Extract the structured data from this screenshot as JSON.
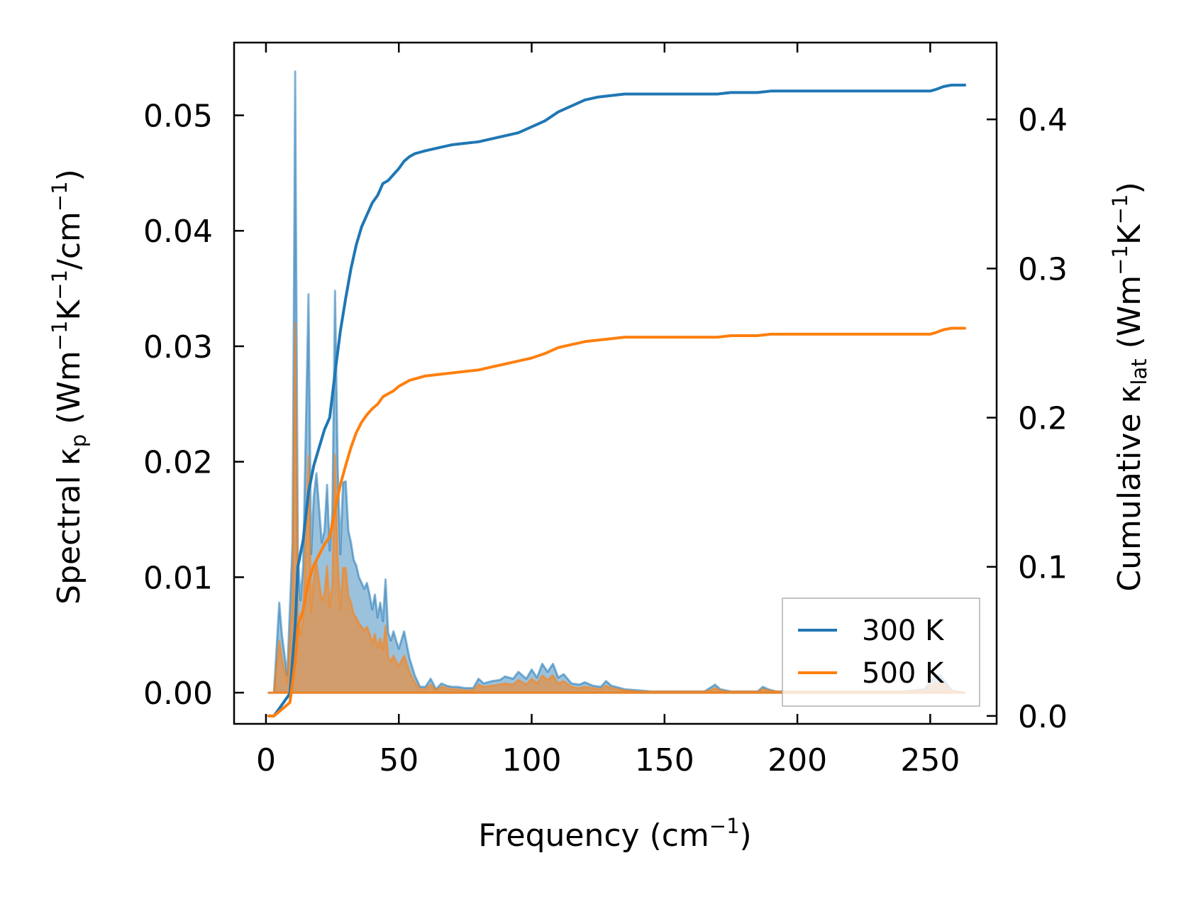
{
  "chart_data": {
    "type": "line",
    "title": "",
    "xlabel": "Frequency (cm⁻¹)",
    "xlabel_parts": {
      "main": "Frequency (cm",
      "sup": "−1",
      "tail": ")"
    },
    "ylabel": "Spectral κp (Wm⁻¹K⁻¹/cm⁻¹)",
    "ylabel_parts": {
      "a": "Spectral κ",
      "sub": "p",
      "b": " (Wm",
      "sup1": "−1",
      "c": "K",
      "sup2": "−1",
      "d": "/cm",
      "sup3": "−1",
      "e": ")"
    },
    "y2label": "Cumulative κlat (Wm⁻¹K⁻¹)",
    "y2label_parts": {
      "a": "Cumulative κ",
      "sub": "lat",
      "b": " (Wm",
      "sup1": "−1",
      "c": "K",
      "sup2": "−1",
      "d": ")"
    },
    "xlim": [
      -12,
      275
    ],
    "ylim": [
      -0.0027,
      0.0563
    ],
    "y2lim": [
      -0.0053,
      0.4515
    ],
    "xticks": [
      0,
      50,
      100,
      150,
      200,
      250
    ],
    "xtick_labels": [
      "0",
      "50",
      "100",
      "150",
      "200",
      "250"
    ],
    "yticks": [
      0.0,
      0.01,
      0.02,
      0.03,
      0.04,
      0.05
    ],
    "ytick_labels": [
      "0.00",
      "0.01",
      "0.02",
      "0.03",
      "0.04",
      "0.05"
    ],
    "y2ticks": [
      0.0,
      0.1,
      0.2,
      0.3,
      0.4
    ],
    "y2tick_labels": [
      "0.0",
      "0.1",
      "0.2",
      "0.3",
      "0.4"
    ],
    "legend_position": "lower-right",
    "colors": {
      "s300": "#1f77b4",
      "s500": "#ff7f0e"
    },
    "series": [
      {
        "name": "300 K",
        "color": "#1f77b4",
        "spectral": {
          "x": [
            1,
            3,
            5,
            6,
            8,
            10,
            11,
            12,
            13,
            14,
            16,
            17,
            18,
            19,
            21,
            22,
            23,
            24,
            25,
            26,
            27,
            28,
            29,
            30,
            31,
            32,
            33,
            34,
            35,
            36,
            37,
            38,
            39,
            40,
            41,
            42,
            43,
            44,
            45,
            46,
            47,
            48,
            49,
            50,
            52,
            54,
            56,
            58,
            60,
            62,
            64,
            66,
            68,
            70,
            72,
            75,
            78,
            80,
            82,
            85,
            88,
            90,
            93,
            95,
            98,
            100,
            102,
            104,
            106,
            108,
            110,
            112,
            115,
            118,
            120,
            123,
            126,
            128,
            130,
            135,
            140,
            145,
            150,
            160,
            165,
            167,
            169,
            171,
            173,
            175,
            180,
            185,
            187,
            189,
            192,
            200,
            220,
            240,
            248,
            250,
            252,
            254,
            256,
            258,
            260,
            263
          ],
          "y": [
            0,
            0,
            0.0078,
            0.005,
            0.0015,
            0.013,
            0.0538,
            0.012,
            0.008,
            0.011,
            0.0345,
            0.012,
            0.017,
            0.019,
            0.013,
            0.014,
            0.018,
            0.0123,
            0.0158,
            0.0348,
            0.0195,
            0.012,
            0.0182,
            0.0183,
            0.014,
            0.013,
            0.0115,
            0.011,
            0.01,
            0.0095,
            0.009,
            0.0095,
            0.0085,
            0.0072,
            0.0085,
            0.0065,
            0.0078,
            0.0062,
            0.0098,
            0.0052,
            0.0045,
            0.0053,
            0.0045,
            0.0038,
            0.0053,
            0.003,
            0.0015,
            0.0005,
            0.0005,
            0.0012,
            0.0003,
            0.0008,
            0.0006,
            0.0005,
            0.0005,
            0.0004,
            0.0004,
            0.0012,
            0.0008,
            0.001,
            0.0011,
            0.0014,
            0.0012,
            0.0018,
            0.0012,
            0.002,
            0.0013,
            0.0025,
            0.0018,
            0.0025,
            0.0013,
            0.0016,
            0.0008,
            0.0007,
            0.0009,
            0.0006,
            0.0005,
            0.001,
            0.0006,
            0.0003,
            0.0002,
            0.0001,
            0.0001,
            0.0001,
            0.0001,
            0.0004,
            0.0007,
            0.0003,
            0.0002,
            0.0001,
            0.0001,
            0.0001,
            0.0005,
            0.0003,
            0.0001,
            0.0001,
            0.0001,
            0.0001,
            0.0003,
            0.001,
            0.0014,
            0.0015,
            0.0008,
            0.0002,
            0.0001,
            0
          ]
        },
        "cumulative": {
          "x": [
            1,
            3,
            5,
            7,
            9,
            11,
            12,
            14,
            16,
            18,
            20,
            22,
            24,
            26,
            28,
            30,
            32,
            34,
            36,
            38,
            40,
            42,
            44,
            46,
            48,
            50,
            52,
            54,
            56,
            58,
            60,
            65,
            70,
            75,
            80,
            85,
            90,
            95,
            100,
            105,
            110,
            115,
            120,
            125,
            130,
            135,
            140,
            150,
            160,
            170,
            175,
            185,
            190,
            200,
            220,
            240,
            250,
            252,
            255,
            258,
            263
          ],
          "y": [
            0,
            0,
            0.005,
            0.01,
            0.015,
            0.06,
            0.1,
            0.118,
            0.15,
            0.168,
            0.18,
            0.192,
            0.2,
            0.23,
            0.258,
            0.28,
            0.3,
            0.316,
            0.328,
            0.336,
            0.344,
            0.349,
            0.357,
            0.359,
            0.363,
            0.367,
            0.372,
            0.375,
            0.377,
            0.378,
            0.379,
            0.381,
            0.383,
            0.384,
            0.385,
            0.387,
            0.389,
            0.391,
            0.395,
            0.399,
            0.405,
            0.409,
            0.413,
            0.415,
            0.416,
            0.417,
            0.417,
            0.417,
            0.417,
            0.417,
            0.418,
            0.418,
            0.419,
            0.419,
            0.419,
            0.419,
            0.419,
            0.42,
            0.422,
            0.423,
            0.423
          ]
        }
      },
      {
        "name": "500 K",
        "color": "#ff7f0e",
        "spectral": {
          "x": [
            1,
            3,
            5,
            6,
            8,
            10,
            11,
            12,
            13,
            14,
            16,
            17,
            18,
            19,
            21,
            22,
            23,
            24,
            25,
            26,
            27,
            28,
            29,
            30,
            31,
            32,
            33,
            34,
            35,
            36,
            37,
            38,
            39,
            40,
            41,
            42,
            43,
            44,
            45,
            46,
            47,
            48,
            49,
            50,
            52,
            54,
            56,
            58,
            60,
            62,
            64,
            66,
            68,
            70,
            72,
            75,
            78,
            80,
            82,
            85,
            88,
            90,
            93,
            95,
            98,
            100,
            102,
            104,
            106,
            108,
            110,
            112,
            115,
            118,
            120,
            123,
            126,
            128,
            130,
            135,
            140,
            145,
            150,
            160,
            165,
            167,
            169,
            171,
            173,
            175,
            180,
            185,
            187,
            189,
            192,
            200,
            220,
            240,
            248,
            250,
            252,
            254,
            256,
            258,
            260,
            263
          ],
          "y": [
            0,
            0,
            0.0045,
            0.003,
            0.0009,
            0.008,
            0.032,
            0.007,
            0.005,
            0.0065,
            0.0205,
            0.007,
            0.01,
            0.0112,
            0.008,
            0.0085,
            0.011,
            0.0074,
            0.0095,
            0.0206,
            0.0115,
            0.0072,
            0.0108,
            0.0108,
            0.0084,
            0.0078,
            0.0068,
            0.0065,
            0.006,
            0.0057,
            0.0054,
            0.0057,
            0.0051,
            0.0043,
            0.0051,
            0.0039,
            0.0047,
            0.0037,
            0.0058,
            0.0031,
            0.0027,
            0.0032,
            0.0027,
            0.0023,
            0.0032,
            0.0018,
            0.0009,
            0.0003,
            0.0003,
            0.0007,
            0.0002,
            0.0005,
            0.0004,
            0.0003,
            0.0003,
            0.0002,
            0.0002,
            0.0007,
            0.0005,
            0.0006,
            0.0007,
            0.0008,
            0.0007,
            0.0011,
            0.0007,
            0.0012,
            0.0008,
            0.0015,
            0.0011,
            0.0015,
            0.0008,
            0.001,
            0.0005,
            0.0004,
            0.0005,
            0.0004,
            0.0003,
            0.0006,
            0.0004,
            0.0002,
            0.0001,
            0.0001,
            0.0001,
            0.0001,
            0.0001,
            0.0002,
            0.0004,
            0.0002,
            0.0001,
            0.0001,
            0.0001,
            0.0001,
            0.0003,
            0.0002,
            0.0001,
            0.0001,
            0.0001,
            0.0001,
            0.0002,
            0.0006,
            0.0008,
            0.0009,
            0.0005,
            0.0001,
            0.0001,
            0
          ]
        },
        "cumulative": {
          "x": [
            1,
            3,
            5,
            7,
            9,
            11,
            12,
            14,
            16,
            18,
            20,
            22,
            24,
            26,
            28,
            30,
            32,
            34,
            36,
            38,
            40,
            42,
            44,
            46,
            48,
            50,
            52,
            54,
            56,
            58,
            60,
            65,
            70,
            75,
            80,
            85,
            90,
            95,
            100,
            105,
            110,
            115,
            120,
            125,
            130,
            135,
            140,
            150,
            160,
            170,
            175,
            185,
            190,
            200,
            220,
            240,
            250,
            252,
            255,
            258,
            263
          ],
          "y": [
            0,
            0,
            0.003,
            0.006,
            0.009,
            0.036,
            0.06,
            0.071,
            0.09,
            0.101,
            0.108,
            0.115,
            0.12,
            0.138,
            0.155,
            0.168,
            0.18,
            0.19,
            0.197,
            0.202,
            0.206,
            0.209,
            0.214,
            0.216,
            0.218,
            0.221,
            0.223,
            0.225,
            0.226,
            0.227,
            0.228,
            0.229,
            0.23,
            0.231,
            0.232,
            0.234,
            0.236,
            0.238,
            0.24,
            0.243,
            0.247,
            0.249,
            0.251,
            0.252,
            0.253,
            0.254,
            0.254,
            0.254,
            0.254,
            0.254,
            0.255,
            0.255,
            0.256,
            0.256,
            0.256,
            0.256,
            0.256,
            0.257,
            0.259,
            0.26,
            0.26
          ]
        }
      }
    ]
  }
}
